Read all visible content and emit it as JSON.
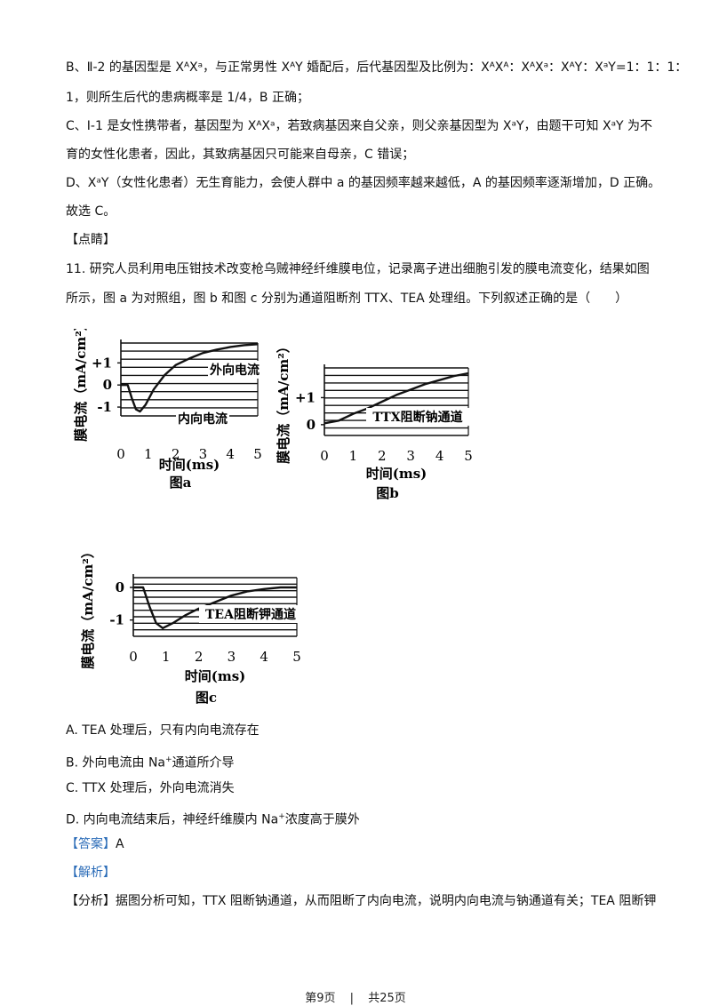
{
  "text": {
    "p1a": "B、Ⅱ-2 的基因型是 XᴬXᵃ，与正常男性 XᴬY 婚配后，后代基因型及比例为：XᴬXᴬ：XᴬXᵃ：XᴬY：XᵃY=1：1：1：",
    "p1b": "1，则所生后代的患病概率是 1/4，B 正确；",
    "p2a": "C、Ⅰ-1 是女性携带者，基因型为 XᴬXᵃ，若致病基因来自父亲，则父亲基因型为 XᵃY，由题干可知 XᵃY 为不",
    "p2b": "育的女性化患者，因此，其致病基因只可能来自母亲，C 错误；",
    "p3": "D、XᵃY（女性化患者）无生育能力，会使人群中 a 的基因频率越来越低，A 的基因频率逐渐增加，D 正确。",
    "p4": "故选 C。",
    "dianjing": "【点睛】",
    "q11a": "11. 研究人员利用电压钳技术改变枪乌贼神经纤维膜电位，记录离子进出细胞引发的膜电流变化，结果如图",
    "q11b": "所示，图 a 为对照组，图 b 和图 c 分别为通道阻断剂 TTX、TEA 处理组。下列叙述正确的是（　　）",
    "optA": "A. TEA 处理后，只有内向电流存在",
    "optB_pre": "B.  外向电流由 Na",
    "optB_sup": "+",
    "optB_post": "通道所介导",
    "optC": "C. TTX 处理后，外向电流消失",
    "optD_pre": "D.  内向电流结束后，神经纤维膜内 Na",
    "optD_sup": "+",
    "optD_post": "浓度高于膜外",
    "answer_tag": "【答案】",
    "answer": "A",
    "jiexi": "【解析】",
    "fenxi_tag": "【分析】",
    "fenxi": "据图分析可知，TTX 阻断钠通道，从而阻断了内向电流，说明内向电流与钠通道有关；TEA 阻断钾"
  },
  "footer": {
    "page": "第9页",
    "sep": "|",
    "total": "共25页"
  },
  "chart_data": [
    {
      "type": "line",
      "title": "图a",
      "xlabel": "时间(ms)",
      "ylabel": "膜电流（mA/cm²）",
      "x_ticks": [
        "0",
        "1",
        "2",
        "3",
        "4",
        "5"
      ],
      "y_ticks": [
        "+1",
        "0",
        "-1"
      ],
      "xlim": [
        0,
        5
      ],
      "ylim": [
        -1.4,
        1.9
      ],
      "annotations": [
        "外向电流",
        "内向电流"
      ],
      "x": [
        0,
        0.25,
        0.4,
        0.55,
        0.7,
        0.9,
        1.2,
        1.6,
        2.0,
        2.5,
        3.0,
        3.5,
        4.0,
        4.5,
        5.0
      ],
      "y": [
        0,
        0,
        -0.6,
        -1.1,
        -1.2,
        -0.9,
        -0.2,
        0.45,
        0.9,
        1.2,
        1.45,
        1.6,
        1.72,
        1.8,
        1.85
      ]
    },
    {
      "type": "line",
      "title": "图b",
      "xlabel": "时间(ms)",
      "ylabel": "膜电流（mA/cm²）",
      "x_ticks": [
        "0",
        "1",
        "2",
        "3",
        "4",
        "5"
      ],
      "y_ticks": [
        "+1",
        "0"
      ],
      "xlim": [
        0,
        5
      ],
      "ylim": [
        -0.4,
        2.1
      ],
      "annotations": [
        "TTX阻断钠通道"
      ],
      "x": [
        0,
        0.5,
        1.0,
        1.5,
        2.0,
        2.5,
        3.0,
        3.5,
        4.0,
        4.5,
        5.0
      ],
      "y": [
        0.05,
        0.15,
        0.4,
        0.6,
        0.85,
        1.1,
        1.3,
        1.5,
        1.65,
        1.8,
        1.9
      ]
    },
    {
      "type": "line",
      "title": "图c",
      "xlabel": "时间(ms)",
      "ylabel": "膜电流（mA/cm²）",
      "x_ticks": [
        "0",
        "1",
        "2",
        "3",
        "4",
        "5"
      ],
      "y_ticks": [
        "0",
        "-1"
      ],
      "xlim": [
        0,
        5
      ],
      "ylim": [
        -1.5,
        0.3
      ],
      "annotations": [
        "TEA阻断钾通道"
      ],
      "x": [
        0,
        0.3,
        0.5,
        0.7,
        0.9,
        1.2,
        1.6,
        2.0,
        2.5,
        3.0,
        3.5,
        4.0,
        4.5,
        5.0
      ],
      "y": [
        0,
        0,
        -0.6,
        -1.1,
        -1.25,
        -1.1,
        -0.85,
        -0.65,
        -0.45,
        -0.25,
        -0.12,
        -0.05,
        0,
        0
      ]
    }
  ]
}
